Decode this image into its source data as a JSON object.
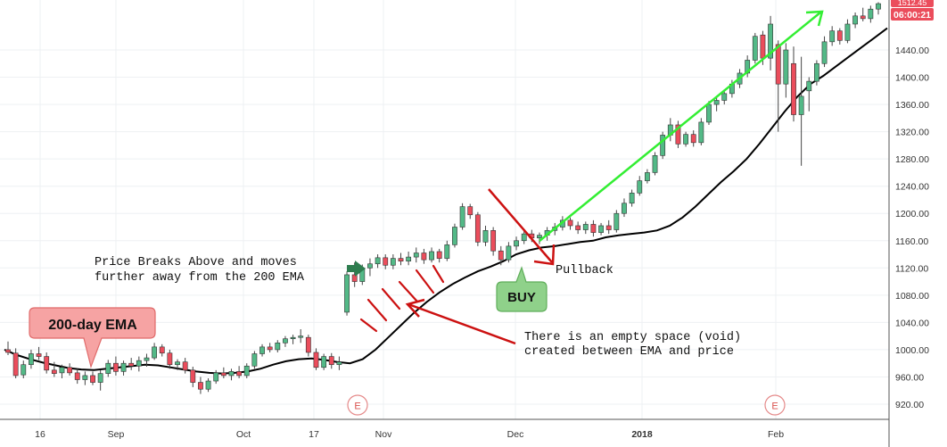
{
  "chart_data": {
    "type": "candlestick",
    "y_axis": {
      "ticks": [
        "920.00",
        "960.00",
        "1000.00",
        "1040.00",
        "1080.00",
        "1120.00",
        "1160.00",
        "1200.00",
        "1240.00",
        "1280.00",
        "1320.00",
        "1360.00",
        "1400.00",
        "1440.00"
      ],
      "ylim": [
        900,
        1505
      ]
    },
    "x_axis": {
      "ticks": [
        "16",
        "Sep",
        "Oct",
        "17",
        "Nov",
        "Dec",
        "2018",
        "Feb"
      ]
    },
    "price_badges": {
      "top_price": "1512.45",
      "timer": "06:00:21"
    },
    "earnings_markers": [
      "E",
      "E"
    ],
    "candles": [
      {
        "o": 1000,
        "h": 1012,
        "l": 992,
        "c": 996
      },
      {
        "o": 995,
        "h": 1002,
        "l": 958,
        "c": 962
      },
      {
        "o": 963,
        "h": 984,
        "l": 958,
        "c": 978
      },
      {
        "o": 978,
        "h": 1000,
        "l": 972,
        "c": 994
      },
      {
        "o": 994,
        "h": 1004,
        "l": 985,
        "c": 990
      },
      {
        "o": 990,
        "h": 996,
        "l": 965,
        "c": 970
      },
      {
        "o": 970,
        "h": 982,
        "l": 960,
        "c": 965
      },
      {
        "o": 966,
        "h": 978,
        "l": 958,
        "c": 974
      },
      {
        "o": 974,
        "h": 980,
        "l": 962,
        "c": 966
      },
      {
        "o": 966,
        "h": 972,
        "l": 950,
        "c": 956
      },
      {
        "o": 956,
        "h": 968,
        "l": 948,
        "c": 962
      },
      {
        "o": 962,
        "h": 968,
        "l": 948,
        "c": 952
      },
      {
        "o": 952,
        "h": 970,
        "l": 940,
        "c": 965
      },
      {
        "o": 965,
        "h": 985,
        "l": 960,
        "c": 980
      },
      {
        "o": 980,
        "h": 990,
        "l": 962,
        "c": 968
      },
      {
        "o": 968,
        "h": 984,
        "l": 962,
        "c": 980
      },
      {
        "o": 980,
        "h": 988,
        "l": 970,
        "c": 976
      },
      {
        "o": 976,
        "h": 990,
        "l": 968,
        "c": 984
      },
      {
        "o": 984,
        "h": 994,
        "l": 975,
        "c": 988
      },
      {
        "o": 988,
        "h": 1010,
        "l": 985,
        "c": 1004
      },
      {
        "o": 1004,
        "h": 1008,
        "l": 990,
        "c": 995
      },
      {
        "o": 995,
        "h": 1000,
        "l": 972,
        "c": 978
      },
      {
        "o": 978,
        "h": 986,
        "l": 970,
        "c": 982
      },
      {
        "o": 982,
        "h": 988,
        "l": 965,
        "c": 970
      },
      {
        "o": 970,
        "h": 975,
        "l": 945,
        "c": 952
      },
      {
        "o": 952,
        "h": 960,
        "l": 935,
        "c": 942
      },
      {
        "o": 942,
        "h": 958,
        "l": 938,
        "c": 954
      },
      {
        "o": 954,
        "h": 970,
        "l": 950,
        "c": 966
      },
      {
        "o": 966,
        "h": 974,
        "l": 958,
        "c": 962
      },
      {
        "o": 962,
        "h": 972,
        "l": 955,
        "c": 968
      },
      {
        "o": 968,
        "h": 976,
        "l": 958,
        "c": 962
      },
      {
        "o": 962,
        "h": 980,
        "l": 958,
        "c": 976
      },
      {
        "o": 976,
        "h": 998,
        "l": 972,
        "c": 994
      },
      {
        "o": 994,
        "h": 1008,
        "l": 990,
        "c": 1004
      },
      {
        "o": 1004,
        "h": 1010,
        "l": 996,
        "c": 1000
      },
      {
        "o": 1000,
        "h": 1014,
        "l": 996,
        "c": 1010
      },
      {
        "o": 1010,
        "h": 1020,
        "l": 1004,
        "c": 1016
      },
      {
        "o": 1016,
        "h": 1022,
        "l": 1008,
        "c": 1018
      },
      {
        "o": 1018,
        "h": 1030,
        "l": 1010,
        "c": 1020
      },
      {
        "o": 1018,
        "h": 1022,
        "l": 990,
        "c": 996
      },
      {
        "o": 996,
        "h": 1002,
        "l": 970,
        "c": 974
      },
      {
        "o": 974,
        "h": 994,
        "l": 970,
        "c": 990
      },
      {
        "o": 990,
        "h": 995,
        "l": 972,
        "c": 978
      },
      {
        "o": 978,
        "h": 990,
        "l": 970,
        "c": 982
      },
      {
        "o": 1055,
        "h": 1115,
        "l": 1050,
        "c": 1110
      },
      {
        "o": 1110,
        "h": 1128,
        "l": 1092,
        "c": 1100
      },
      {
        "o": 1100,
        "h": 1125,
        "l": 1095,
        "c": 1120
      },
      {
        "o": 1120,
        "h": 1134,
        "l": 1108,
        "c": 1126
      },
      {
        "o": 1126,
        "h": 1140,
        "l": 1120,
        "c": 1135
      },
      {
        "o": 1135,
        "h": 1140,
        "l": 1118,
        "c": 1124
      },
      {
        "o": 1124,
        "h": 1140,
        "l": 1118,
        "c": 1134
      },
      {
        "o": 1134,
        "h": 1142,
        "l": 1124,
        "c": 1130
      },
      {
        "o": 1130,
        "h": 1144,
        "l": 1124,
        "c": 1136
      },
      {
        "o": 1136,
        "h": 1150,
        "l": 1128,
        "c": 1142
      },
      {
        "o": 1142,
        "h": 1148,
        "l": 1126,
        "c": 1132
      },
      {
        "o": 1132,
        "h": 1150,
        "l": 1128,
        "c": 1144
      },
      {
        "o": 1144,
        "h": 1148,
        "l": 1128,
        "c": 1134
      },
      {
        "o": 1134,
        "h": 1160,
        "l": 1130,
        "c": 1154
      },
      {
        "o": 1154,
        "h": 1185,
        "l": 1150,
        "c": 1180
      },
      {
        "o": 1180,
        "h": 1215,
        "l": 1176,
        "c": 1210
      },
      {
        "o": 1210,
        "h": 1214,
        "l": 1192,
        "c": 1198
      },
      {
        "o": 1198,
        "h": 1202,
        "l": 1152,
        "c": 1158
      },
      {
        "o": 1158,
        "h": 1182,
        "l": 1152,
        "c": 1175
      },
      {
        "o": 1175,
        "h": 1180,
        "l": 1138,
        "c": 1145
      },
      {
        "o": 1145,
        "h": 1152,
        "l": 1124,
        "c": 1132
      },
      {
        "o": 1132,
        "h": 1158,
        "l": 1128,
        "c": 1152
      },
      {
        "o": 1152,
        "h": 1166,
        "l": 1146,
        "c": 1160
      },
      {
        "o": 1160,
        "h": 1175,
        "l": 1155,
        "c": 1170
      },
      {
        "o": 1170,
        "h": 1176,
        "l": 1158,
        "c": 1164
      },
      {
        "o": 1164,
        "h": 1172,
        "l": 1155,
        "c": 1168
      },
      {
        "o": 1168,
        "h": 1180,
        "l": 1160,
        "c": 1175
      },
      {
        "o": 1175,
        "h": 1186,
        "l": 1168,
        "c": 1180
      },
      {
        "o": 1180,
        "h": 1196,
        "l": 1175,
        "c": 1190
      },
      {
        "o": 1190,
        "h": 1194,
        "l": 1176,
        "c": 1182
      },
      {
        "o": 1182,
        "h": 1188,
        "l": 1170,
        "c": 1176
      },
      {
        "o": 1176,
        "h": 1188,
        "l": 1170,
        "c": 1184
      },
      {
        "o": 1184,
        "h": 1190,
        "l": 1166,
        "c": 1172
      },
      {
        "o": 1172,
        "h": 1186,
        "l": 1168,
        "c": 1182
      },
      {
        "o": 1182,
        "h": 1190,
        "l": 1170,
        "c": 1176
      },
      {
        "o": 1176,
        "h": 1205,
        "l": 1172,
        "c": 1200
      },
      {
        "o": 1200,
        "h": 1222,
        "l": 1195,
        "c": 1215
      },
      {
        "o": 1215,
        "h": 1235,
        "l": 1210,
        "c": 1230
      },
      {
        "o": 1230,
        "h": 1255,
        "l": 1226,
        "c": 1248
      },
      {
        "o": 1248,
        "h": 1265,
        "l": 1244,
        "c": 1260
      },
      {
        "o": 1260,
        "h": 1290,
        "l": 1256,
        "c": 1285
      },
      {
        "o": 1285,
        "h": 1320,
        "l": 1280,
        "c": 1315
      },
      {
        "o": 1315,
        "h": 1340,
        "l": 1306,
        "c": 1330
      },
      {
        "o": 1330,
        "h": 1336,
        "l": 1296,
        "c": 1302
      },
      {
        "o": 1302,
        "h": 1320,
        "l": 1298,
        "c": 1316
      },
      {
        "o": 1316,
        "h": 1322,
        "l": 1298,
        "c": 1304
      },
      {
        "o": 1304,
        "h": 1340,
        "l": 1300,
        "c": 1334
      },
      {
        "o": 1334,
        "h": 1365,
        "l": 1330,
        "c": 1360
      },
      {
        "o": 1360,
        "h": 1372,
        "l": 1350,
        "c": 1366
      },
      {
        "o": 1366,
        "h": 1382,
        "l": 1360,
        "c": 1376
      },
      {
        "o": 1376,
        "h": 1396,
        "l": 1370,
        "c": 1390
      },
      {
        "o": 1390,
        "h": 1412,
        "l": 1384,
        "c": 1406
      },
      {
        "o": 1406,
        "h": 1432,
        "l": 1400,
        "c": 1425
      },
      {
        "o": 1425,
        "h": 1465,
        "l": 1420,
        "c": 1460
      },
      {
        "o": 1462,
        "h": 1468,
        "l": 1418,
        "c": 1428
      },
      {
        "o": 1428,
        "h": 1490,
        "l": 1410,
        "c": 1478
      },
      {
        "o": 1448,
        "h": 1454,
        "l": 1320,
        "c": 1390
      },
      {
        "o": 1390,
        "h": 1450,
        "l": 1370,
        "c": 1440
      },
      {
        "o": 1420,
        "h": 1445,
        "l": 1335,
        "c": 1345
      },
      {
        "o": 1345,
        "h": 1430,
        "l": 1270,
        "c": 1372
      },
      {
        "o": 1380,
        "h": 1400,
        "l": 1350,
        "c": 1394
      },
      {
        "o": 1394,
        "h": 1425,
        "l": 1388,
        "c": 1420
      },
      {
        "o": 1420,
        "h": 1460,
        "l": 1415,
        "c": 1452
      },
      {
        "o": 1452,
        "h": 1475,
        "l": 1446,
        "c": 1468
      },
      {
        "o": 1468,
        "h": 1472,
        "l": 1448,
        "c": 1454
      },
      {
        "o": 1454,
        "h": 1485,
        "l": 1450,
        "c": 1478
      },
      {
        "o": 1478,
        "h": 1495,
        "l": 1472,
        "c": 1490
      },
      {
        "o": 1490,
        "h": 1502,
        "l": 1482,
        "c": 1486
      },
      {
        "o": 1486,
        "h": 1505,
        "l": 1480,
        "c": 1500
      },
      {
        "o": 1500,
        "h": 1510,
        "l": 1492,
        "c": 1508
      }
    ],
    "ema_200": [
      1000,
      992,
      986,
      981,
      977,
      973,
      971,
      970,
      972,
      974,
      976,
      978,
      977,
      974,
      971,
      968,
      966,
      965,
      966,
      968,
      972,
      978,
      983,
      986,
      987,
      985,
      982,
      980,
      986,
      1000,
      1018,
      1036,
      1054,
      1070,
      1084,
      1096,
      1106,
      1115,
      1122,
      1130,
      1140,
      1146,
      1150,
      1152,
      1155,
      1158,
      1160,
      1165,
      1168,
      1170,
      1172,
      1175,
      1182,
      1194,
      1210,
      1228,
      1246,
      1262,
      1280,
      1302,
      1326,
      1350,
      1372,
      1390,
      1402,
      1416,
      1430,
      1444,
      1458,
      1472
    ]
  },
  "annotations": {
    "breakout_text": [
      "Price Breaks Above and moves",
      "further away from the 200 EMA"
    ],
    "pullback_text": "Pullback",
    "void_text": [
      "There is an empty space (void)",
      "created between EMA and price"
    ],
    "ema_callout": "200-day EMA",
    "buy_callout": "BUY"
  },
  "colors": {
    "bull": "#53b987",
    "bear": "#eb4d5c",
    "ema_line": "#000000",
    "trend_arrow": "#33ee33",
    "annotation_arrow": "#cc1111",
    "breakout_arrow": "#2e7d4f",
    "ema_callout_fill": "#f6a3a3",
    "buy_callout_fill": "#8fd18a",
    "timer_badge": "#eb4d5c"
  }
}
